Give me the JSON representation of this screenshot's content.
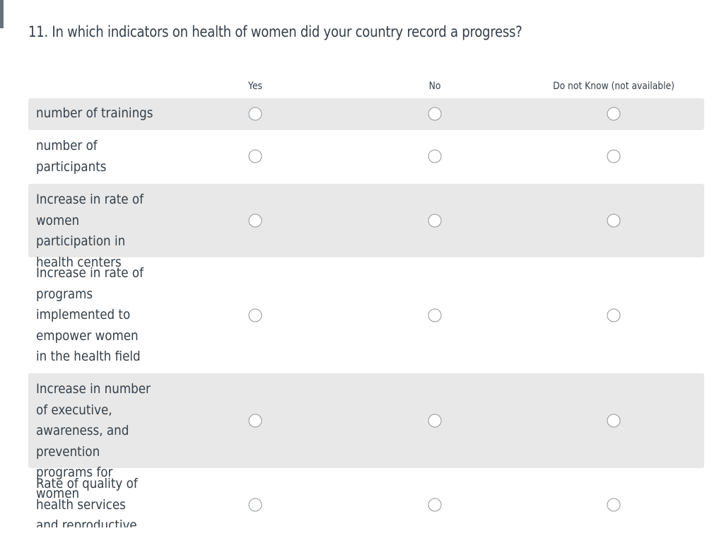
{
  "question": {
    "title": "11. In which indicators on health of women did your country record a progress?"
  },
  "columns": [
    {
      "label": "Yes"
    },
    {
      "label": "No"
    },
    {
      "label": "Do not Know (not available)"
    }
  ],
  "rows": [
    {
      "label": "number of trainings"
    },
    {
      "label": "number of participants"
    },
    {
      "label": "Increase in rate of women participation in health centers"
    },
    {
      "label": "Increase in rate of programs implemented to empower women in the health field"
    },
    {
      "label": "Increase in number of executive, awareness, and prevention programs for women"
    },
    {
      "label": "Rate of quality of health services and reproductive health"
    }
  ],
  "colors": {
    "text": "#333e48",
    "row_shade": "#e8e8e8",
    "radio_border": "#8e949a"
  }
}
